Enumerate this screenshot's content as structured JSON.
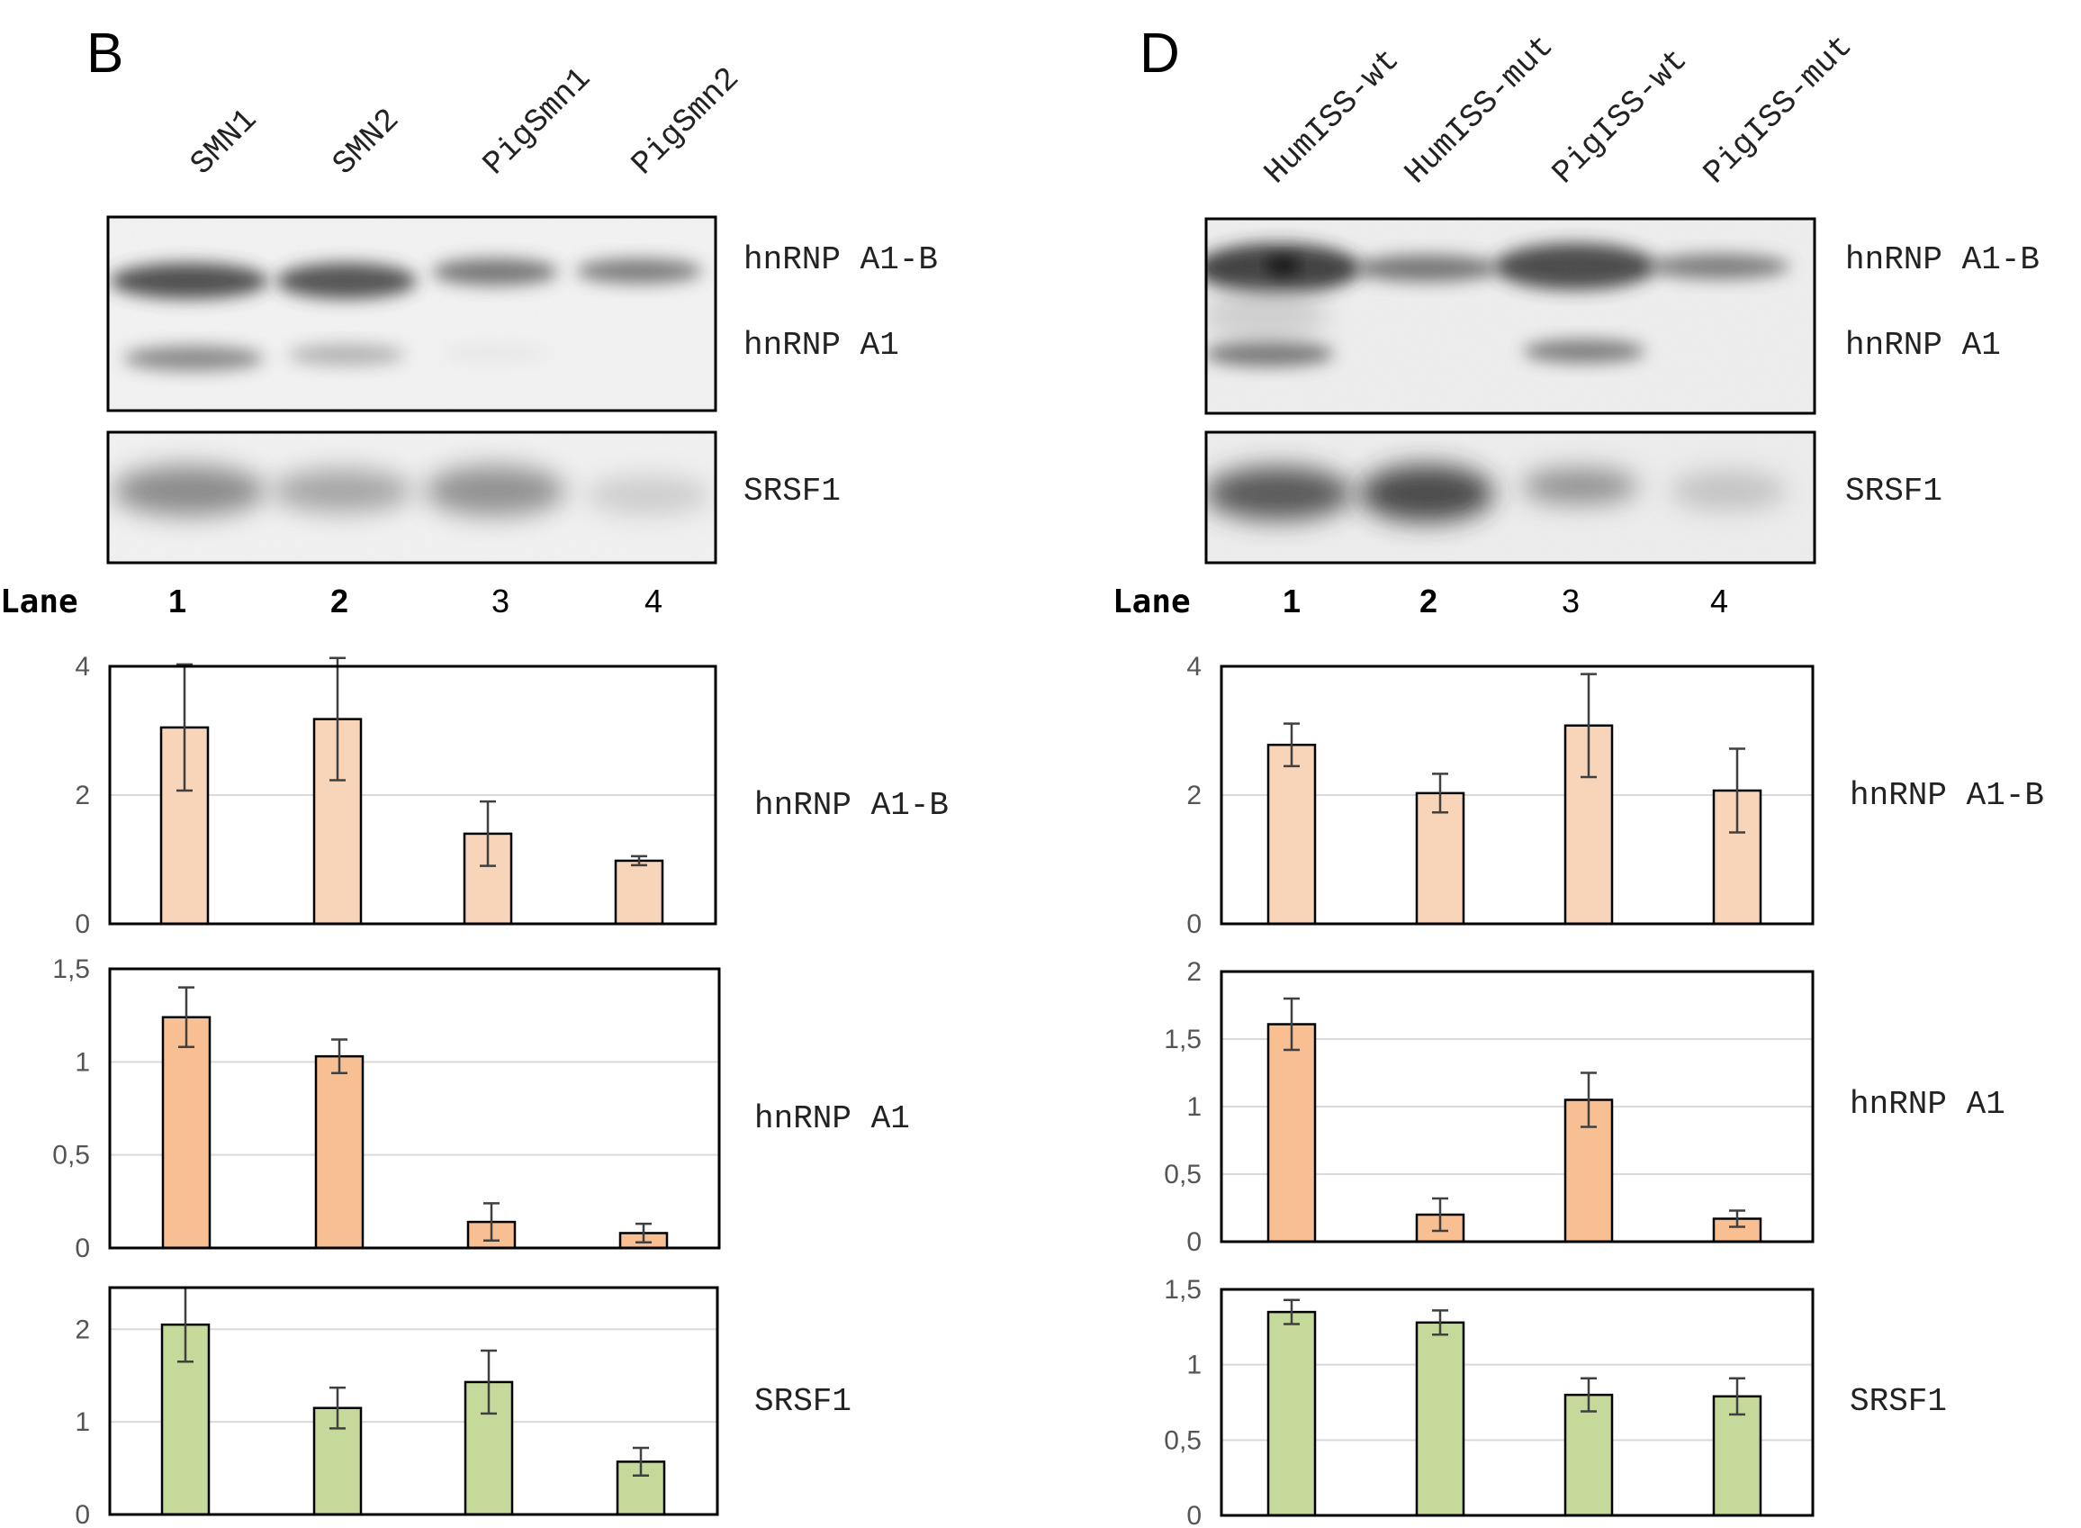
{
  "panels": [
    {
      "letter": "B",
      "lanes": [
        "SMN1",
        "SMN2",
        "PigSmn1",
        "PigSmn2"
      ],
      "lane_title": "Lane",
      "lane_numbers": [
        "1",
        "2",
        "3",
        "4"
      ],
      "blot": {
        "top_labels": [
          "hnRNP A1-B",
          "hnRNP A1"
        ],
        "bottom_label": "SRSF1"
      }
    },
    {
      "letter": "D",
      "lanes": [
        "HumISS-wt",
        "HumISS-mut",
        "PigISS-wt",
        "PigISS-mut"
      ],
      "lane_title": "Lane",
      "lane_numbers": [
        "1",
        "2",
        "3",
        "4"
      ],
      "blot": {
        "top_labels": [
          "hnRNP A1-B",
          "hnRNP A1"
        ],
        "bottom_label": "SRSF1"
      }
    }
  ],
  "colors": {
    "hnrnp_a1b": "#f8d5b9",
    "hnrnp_a1": "#f7bf92",
    "srsf1": "#c5d99b",
    "error_bar": "#404040"
  },
  "chart_data": [
    {
      "type": "bar",
      "panel": "B",
      "label": "hnRNP A1-B",
      "categories": [
        "1",
        "2",
        "3",
        "4"
      ],
      "values": [
        3.05,
        3.18,
        1.4,
        0.98
      ],
      "errors": [
        0.98,
        0.95,
        0.5,
        0.07
      ],
      "ylim": [
        0,
        4
      ],
      "yticks": [
        "0",
        "2",
        "4"
      ],
      "tick_values": [
        0,
        2,
        4
      ],
      "grid": true
    },
    {
      "type": "bar",
      "panel": "B",
      "label": "hnRNP A1",
      "categories": [
        "1",
        "2",
        "3",
        "4"
      ],
      "values": [
        1.24,
        1.03,
        0.14,
        0.08
      ],
      "errors": [
        0.16,
        0.09,
        0.1,
        0.05
      ],
      "ylim": [
        0,
        1.5
      ],
      "yticks": [
        "0",
        "0,5",
        "1",
        "1,5"
      ],
      "tick_values": [
        0,
        0.5,
        1,
        1.5
      ],
      "grid": true
    },
    {
      "type": "bar",
      "panel": "B",
      "label": "SRSF1",
      "categories": [
        "1",
        "2",
        "3",
        "4"
      ],
      "values": [
        2.05,
        1.15,
        1.43,
        0.57
      ],
      "errors": [
        0.4,
        0.22,
        0.34,
        0.15
      ],
      "ylim": [
        0,
        2.45
      ],
      "yticks": [
        "0",
        "1",
        "2"
      ],
      "tick_values": [
        0,
        1,
        2
      ],
      "grid": true
    },
    {
      "type": "bar",
      "panel": "D",
      "label": "hnRNP A1-B",
      "categories": [
        "1",
        "2",
        "3",
        "4"
      ],
      "values": [
        2.78,
        2.03,
        3.08,
        2.07
      ],
      "errors": [
        0.33,
        0.3,
        0.8,
        0.65
      ],
      "ylim": [
        0,
        4
      ],
      "yticks": [
        "0",
        "2",
        "4"
      ],
      "tick_values": [
        0,
        2,
        4
      ],
      "grid": true
    },
    {
      "type": "bar",
      "panel": "D",
      "label": "hnRNP A1",
      "categories": [
        "1",
        "2",
        "3",
        "4"
      ],
      "values": [
        1.61,
        0.2,
        1.05,
        0.17
      ],
      "errors": [
        0.19,
        0.12,
        0.2,
        0.06
      ],
      "ylim": [
        0,
        2
      ],
      "yticks": [
        "0",
        "0,5",
        "1",
        "1,5",
        "2"
      ],
      "tick_values": [
        0,
        0.5,
        1,
        1.5,
        2
      ],
      "grid": true
    },
    {
      "type": "bar",
      "panel": "D",
      "label": "SRSF1",
      "categories": [
        "1",
        "2",
        "3",
        "4"
      ],
      "values": [
        1.35,
        1.28,
        0.8,
        0.79
      ],
      "errors": [
        0.08,
        0.08,
        0.11,
        0.12
      ],
      "ylim": [
        0,
        1.5
      ],
      "yticks": [
        "0",
        "0,5",
        "1",
        "1,5"
      ],
      "tick_values": [
        0,
        0.5,
        1,
        1.5
      ],
      "grid": true
    }
  ]
}
